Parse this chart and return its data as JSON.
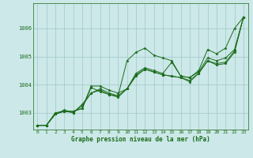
{
  "background_color": "#cce8e8",
  "grid_color": "#a0c8c8",
  "line_color": "#1a6b1a",
  "text_color": "#1a6b1a",
  "xlabel": "Graphe pression niveau de la mer (hPa)",
  "ylim": [
    1002.4,
    1006.9
  ],
  "xlim": [
    -0.5,
    23.5
  ],
  "yticks": [
    1003,
    1004,
    1005,
    1006
  ],
  "xticks": [
    0,
    1,
    2,
    3,
    4,
    5,
    6,
    7,
    8,
    9,
    10,
    11,
    12,
    13,
    14,
    15,
    16,
    17,
    18,
    19,
    20,
    21,
    22,
    23
  ],
  "series": [
    [
      1002.55,
      1002.55,
      1002.95,
      1003.05,
      1003.05,
      1003.15,
      1003.9,
      1003.75,
      1003.65,
      1003.6,
      1004.85,
      1005.15,
      1005.3,
      1005.05,
      1004.95,
      1004.85,
      1004.3,
      1004.25,
      1004.5,
      1005.25,
      1005.1,
      1005.3,
      1006.0,
      1006.4
    ],
    [
      1002.55,
      1002.55,
      1002.95,
      1003.1,
      1003.0,
      1003.25,
      1003.7,
      1003.85,
      1003.7,
      1003.6,
      1003.85,
      1004.35,
      1004.55,
      1004.45,
      1004.35,
      1004.3,
      1004.25,
      1004.15,
      1004.4,
      1004.85,
      1004.75,
      1004.8,
      1005.2,
      1006.4
    ],
    [
      1002.55,
      1002.55,
      1002.95,
      1003.05,
      1003.0,
      1003.3,
      1003.7,
      1003.8,
      1003.65,
      1003.55,
      1003.85,
      1004.3,
      1004.55,
      1004.45,
      1004.35,
      1004.3,
      1004.25,
      1004.1,
      1004.4,
      1004.85,
      1004.7,
      1004.75,
      1005.15,
      1006.4
    ],
    [
      1002.55,
      1002.55,
      1003.0,
      1003.05,
      1003.05,
      1003.15,
      1003.95,
      1003.95,
      1003.8,
      1003.7,
      1003.85,
      1004.4,
      1004.6,
      1004.5,
      1004.4,
      1004.8,
      1004.3,
      1004.25,
      1004.45,
      1004.95,
      1004.85,
      1004.95,
      1005.25,
      1006.4
    ]
  ]
}
